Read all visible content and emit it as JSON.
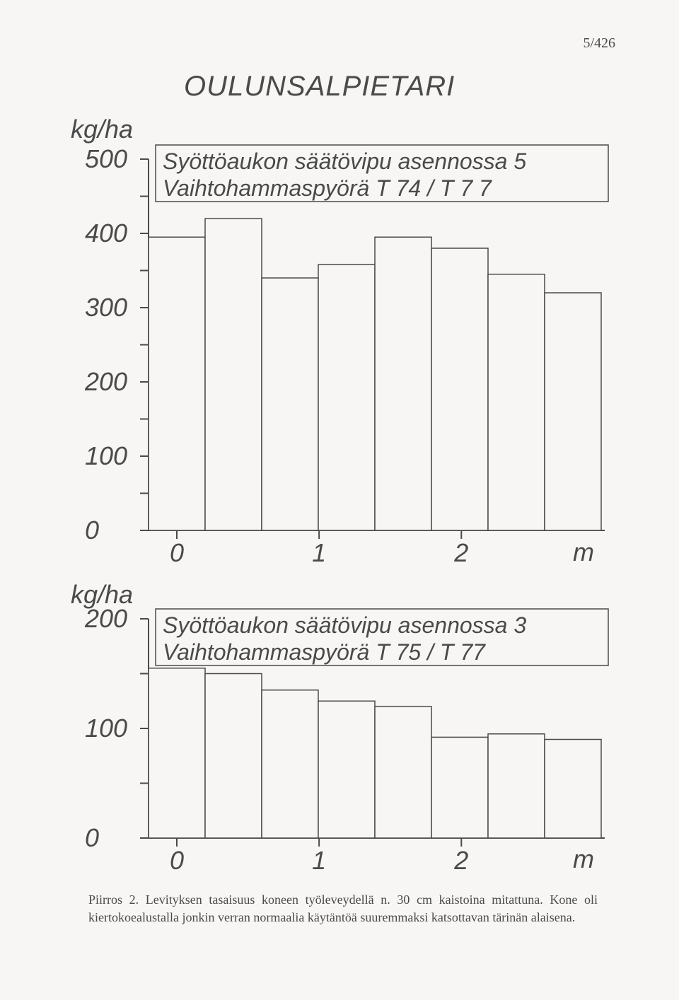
{
  "page_number": "5/426",
  "title": "OULUNSALPIETARI",
  "chart1": {
    "type": "bar",
    "y_label": "kg/ha",
    "y_ticks": [
      "0",
      "100",
      "200",
      "300",
      "400",
      "500"
    ],
    "y_max": 500,
    "x_ticks": [
      "0",
      "1",
      "2"
    ],
    "x_unit": "m",
    "info_line1": "Syöttöaukon säätövipu asennossa 5",
    "info_line2": "Vaihtohammaspyörä   T 74 / T 7 7",
    "bars": [
      395,
      420,
      340,
      358,
      395,
      380,
      345,
      320
    ],
    "bar_color": "#f7f6f4",
    "bar_stroke": "#4a4a4a",
    "bg_color": "#f7f6f4"
  },
  "chart2": {
    "type": "bar",
    "y_label": "kg/ha",
    "y_ticks": [
      "0",
      "100",
      "200"
    ],
    "y_max": 200,
    "x_ticks": [
      "0",
      "1",
      "2"
    ],
    "x_unit": "m",
    "info_line1": "Syöttöaukon säätövipu asennossa 3",
    "info_line2": "Vaihtohammaspyörä  T 75 / T 77",
    "bars": [
      155,
      150,
      135,
      125,
      120,
      92,
      95,
      90
    ],
    "bar_color": "#f7f6f4",
    "bar_stroke": "#4a4a4a",
    "bg_color": "#f7f6f4"
  },
  "caption_prefix": "Piirros 2. ",
  "caption_text": "Levityksen tasaisuus koneen työleveydellä n. 30 cm kaistoina mitattuna. Kone oli kiertokoealustalla jonkin verran normaalia käytäntöä suuremmaksi katsottavan tärinän alaisena."
}
